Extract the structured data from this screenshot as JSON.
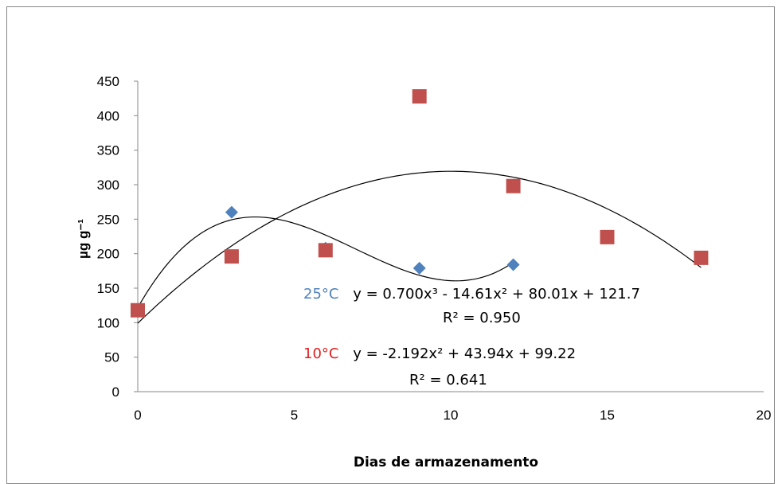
{
  "chart_data": {
    "type": "scatter",
    "xlabel": "Dias de armazenamento",
    "ylabel": "µg g⁻¹",
    "xlim": [
      0,
      20
    ],
    "ylim": [
      0,
      450
    ],
    "xticks": [
      0,
      5,
      10,
      15,
      20
    ],
    "yticks": [
      0,
      50,
      100,
      150,
      200,
      250,
      300,
      350,
      400,
      450
    ],
    "grid": false,
    "series": [
      {
        "name": "25°C",
        "color": "#4F81BD",
        "marker": "diamond",
        "x": [
          0,
          3,
          6,
          9,
          12
        ],
        "y": [
          118,
          260,
          208,
          179,
          184
        ],
        "trendline": {
          "type": "polynomial",
          "degree": 3,
          "coefficients": [
            0.7,
            -14.61,
            80.01,
            121.7
          ],
          "equation": "y = 0.700x³ - 14.61x² + 80.01x + 121.7",
          "r2": "R² = 0.950",
          "label": "25°C"
        }
      },
      {
        "name": "10°C",
        "color": "#C0504D",
        "marker": "square",
        "x": [
          0,
          3,
          6,
          9,
          12,
          15,
          18
        ],
        "y": [
          118,
          196,
          205,
          428,
          298,
          224,
          194
        ],
        "trendline": {
          "type": "polynomial",
          "degree": 2,
          "coefficients": [
            -2.192,
            43.94,
            99.22
          ],
          "equation": "y = -2.192x² + 43.94x + 99.22",
          "r2": "R² = 0.641",
          "label": "10°C"
        }
      }
    ]
  }
}
